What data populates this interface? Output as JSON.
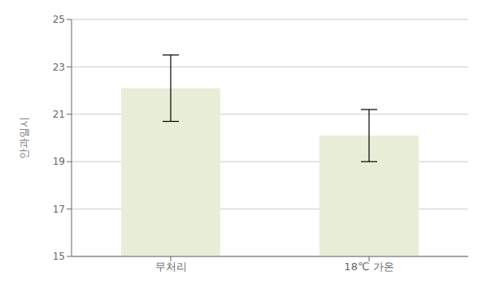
{
  "chart_data": {
    "type": "bar",
    "categories": [
      "무처리",
      "18℃ 가온"
    ],
    "values": [
      22.1,
      20.1
    ],
    "errors": [
      1.4,
      1.1
    ],
    "color": "#e8edd8",
    "ylabel": "안과일시",
    "ylim": [
      15,
      25
    ],
    "yticks": [
      15,
      17,
      19,
      21,
      23,
      25
    ],
    "grid": true
  }
}
